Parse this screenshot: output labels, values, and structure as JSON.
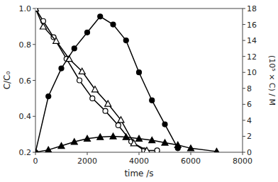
{
  "chart_data": {
    "type": "line",
    "xlabel": "time /s",
    "ylabel": "C/C₀",
    "y2label": "(10⁵ × C) / M",
    "xlim": [
      0,
      8000
    ],
    "xticks": [
      0,
      2000,
      4000,
      6000,
      8000
    ],
    "ylim": [
      0.2,
      1.0
    ],
    "yticks": [
      0.2,
      0.4,
      0.6,
      0.8,
      {
        "value": 1.0,
        "label": "1.0"
      }
    ],
    "y2lim": [
      0,
      18
    ],
    "y2ticks": [
      0,
      2,
      4,
      6,
      8,
      10,
      12,
      14,
      16,
      18
    ],
    "grid": false,
    "series": [
      {
        "color": "#000000",
        "marker": "open-circle",
        "axis": "y",
        "x": [
          0,
          300,
          700,
          1200,
          1700,
          2200,
          2700,
          3200,
          3700,
          4200,
          4700
        ],
        "values": [
          1.0,
          0.93,
          0.84,
          0.72,
          0.6,
          0.5,
          0.43,
          0.35,
          0.26,
          0.21,
          0.21
        ]
      },
      {
        "color": "#000000",
        "marker": "open-triangle",
        "axis": "y",
        "x": [
          0,
          300,
          800,
          1300,
          1800,
          2300,
          2800,
          3300,
          3800,
          4300
        ],
        "values": [
          1.0,
          0.9,
          0.82,
          0.72,
          0.65,
          0.55,
          0.47,
          0.38,
          0.25,
          0.21
        ]
      },
      {
        "color": "#000000",
        "marker": "circle",
        "axis": "y2",
        "x": [
          0,
          500,
          1000,
          1500,
          2000,
          2500,
          3000,
          3500,
          4000,
          4500,
          5000,
          5500
        ],
        "values": [
          0,
          7.0,
          10.5,
          13.0,
          15.0,
          17.0,
          16.0,
          14.0,
          10.0,
          6.5,
          3.5,
          0.5
        ]
      },
      {
        "color": "#000000",
        "marker": "triangle",
        "axis": "y2",
        "x": [
          0,
          500,
          1000,
          1500,
          2000,
          2500,
          3000,
          3500,
          4000,
          4500,
          5000,
          5500,
          6000,
          7000
        ],
        "values": [
          0,
          0.3,
          0.8,
          1.3,
          1.7,
          1.9,
          2.0,
          1.9,
          1.7,
          1.5,
          1.2,
          0.9,
          0.5,
          0.1
        ]
      }
    ]
  }
}
